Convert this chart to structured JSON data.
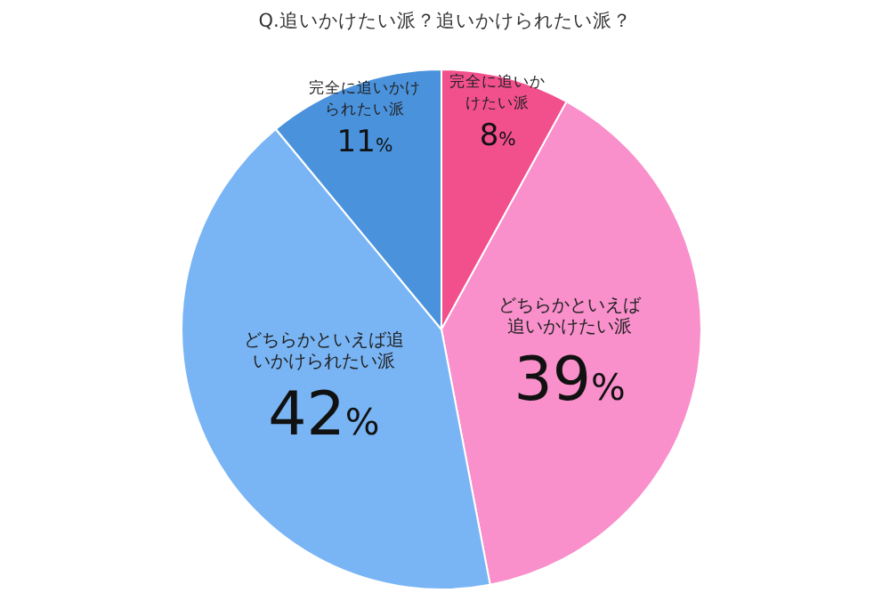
{
  "chart_data": {
    "type": "pie",
    "title": "Q.追いかけたい派？追いかけられたい派？",
    "categories": [
      "完全に追いかけたい派",
      "どちらかといえば追いかけたい派",
      "どちらかといえば追いかけられたい派",
      "完全に追いかけられたい派"
    ],
    "values": [
      8,
      39,
      42,
      11
    ],
    "colors": [
      "#f2508c",
      "#f98fcb",
      "#79b5f5",
      "#4a92dc"
    ],
    "value_labels": [
      "8%",
      "39%",
      "42%",
      "11%"
    ]
  }
}
